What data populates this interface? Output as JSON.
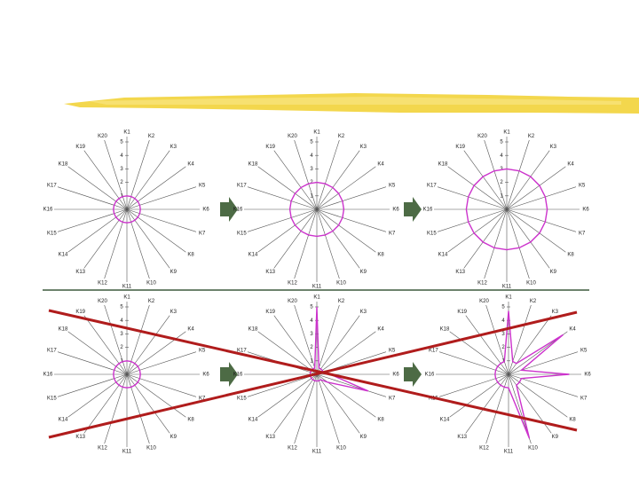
{
  "chart_data": [
    {
      "type": "radar",
      "categories": [
        "K1",
        "K2",
        "K3",
        "K4",
        "K5",
        "K6",
        "K7",
        "K8",
        "K9",
        "K10",
        "K11",
        "K12",
        "K13",
        "K14",
        "K15",
        "K16",
        "K17",
        "K18",
        "K19",
        "K20"
      ],
      "values": [
        1,
        1,
        1,
        1,
        1,
        1,
        1,
        1,
        1,
        1,
        1,
        1,
        1,
        1,
        1,
        1,
        1,
        1,
        1,
        1
      ],
      "color": "#cc33cc",
      "rlim": [
        0,
        5
      ],
      "rticks": [
        1,
        2,
        3,
        4,
        5
      ]
    },
    {
      "type": "radar",
      "categories": [
        "K1",
        "K2",
        "K3",
        "K4",
        "K5",
        "K6",
        "K7",
        "K8",
        "K9",
        "K10",
        "K11",
        "K12",
        "K13",
        "K14",
        "K15",
        "K16",
        "K17",
        "K18",
        "K19",
        "K20"
      ],
      "values": [
        2,
        2,
        2,
        2,
        2,
        2,
        2,
        2,
        2,
        2,
        2,
        2,
        2,
        2,
        2,
        2,
        2,
        2,
        2,
        2
      ],
      "color": "#cc33cc",
      "rlim": [
        0,
        5
      ],
      "rticks": [
        1,
        2,
        3,
        4,
        5
      ]
    },
    {
      "type": "radar",
      "categories": [
        "K1",
        "K2",
        "K3",
        "K4",
        "K5",
        "K6",
        "K7",
        "K8",
        "K9",
        "K10",
        "K11",
        "K12",
        "K13",
        "K14",
        "K15",
        "K16",
        "K17",
        "K18",
        "K19",
        "K20"
      ],
      "values": [
        3,
        3,
        3,
        3,
        3,
        3,
        3,
        3,
        3,
        3,
        3,
        3,
        3,
        3,
        3,
        3,
        3,
        3,
        3,
        3
      ],
      "color": "#cc33cc",
      "rlim": [
        0,
        5
      ],
      "rticks": [
        1,
        2,
        3,
        4,
        5
      ]
    },
    {
      "type": "radar",
      "categories": [
        "K1",
        "K2",
        "K3",
        "K4",
        "K5",
        "K6",
        "K7",
        "K8",
        "K9",
        "K10",
        "K11",
        "K12",
        "K13",
        "K14",
        "K15",
        "K16",
        "K17",
        "K18",
        "K19",
        "K20"
      ],
      "values": [
        1,
        1,
        1,
        1,
        1,
        1,
        1,
        1,
        1,
        1,
        1,
        1,
        1,
        1,
        1,
        1,
        1,
        1,
        1,
        1
      ],
      "color": "#cc33cc",
      "rlim": [
        0,
        5
      ],
      "rticks": [
        1,
        2,
        3,
        4,
        5
      ]
    },
    {
      "type": "radar",
      "categories": [
        "K1",
        "K2",
        "K3",
        "K4",
        "K5",
        "K6",
        "K7",
        "K8",
        "K9",
        "K10",
        "K11",
        "K12",
        "K13",
        "K14",
        "K15",
        "K16",
        "K17",
        "K18",
        "K19",
        "K20"
      ],
      "values": [
        5,
        0.5,
        0.5,
        0.5,
        0.5,
        1,
        4,
        1,
        0.5,
        0.5,
        0.5,
        0.5,
        0.5,
        0.5,
        0.5,
        0.5,
        0.5,
        0.5,
        0.5,
        0.5
      ],
      "color": "#cc33cc",
      "rlim": [
        0,
        5
      ],
      "rticks": [
        1,
        2,
        3,
        4,
        5
      ]
    },
    {
      "type": "radar",
      "categories": [
        "K1",
        "K2",
        "K3",
        "K4",
        "K5",
        "K6",
        "K7",
        "K8",
        "K9",
        "K10",
        "K11",
        "K12",
        "K13",
        "K14",
        "K15",
        "K16",
        "K17",
        "K18",
        "K19",
        "K20"
      ],
      "values": [
        4.7,
        1,
        1,
        5,
        1,
        4.5,
        1,
        1,
        1,
        5,
        1,
        1,
        1,
        1,
        1,
        1,
        1,
        1,
        1,
        1
      ],
      "color": "#cc33cc",
      "rlim": [
        0,
        5
      ],
      "rticks": [
        1,
        2,
        3,
        4,
        5
      ]
    }
  ]
}
